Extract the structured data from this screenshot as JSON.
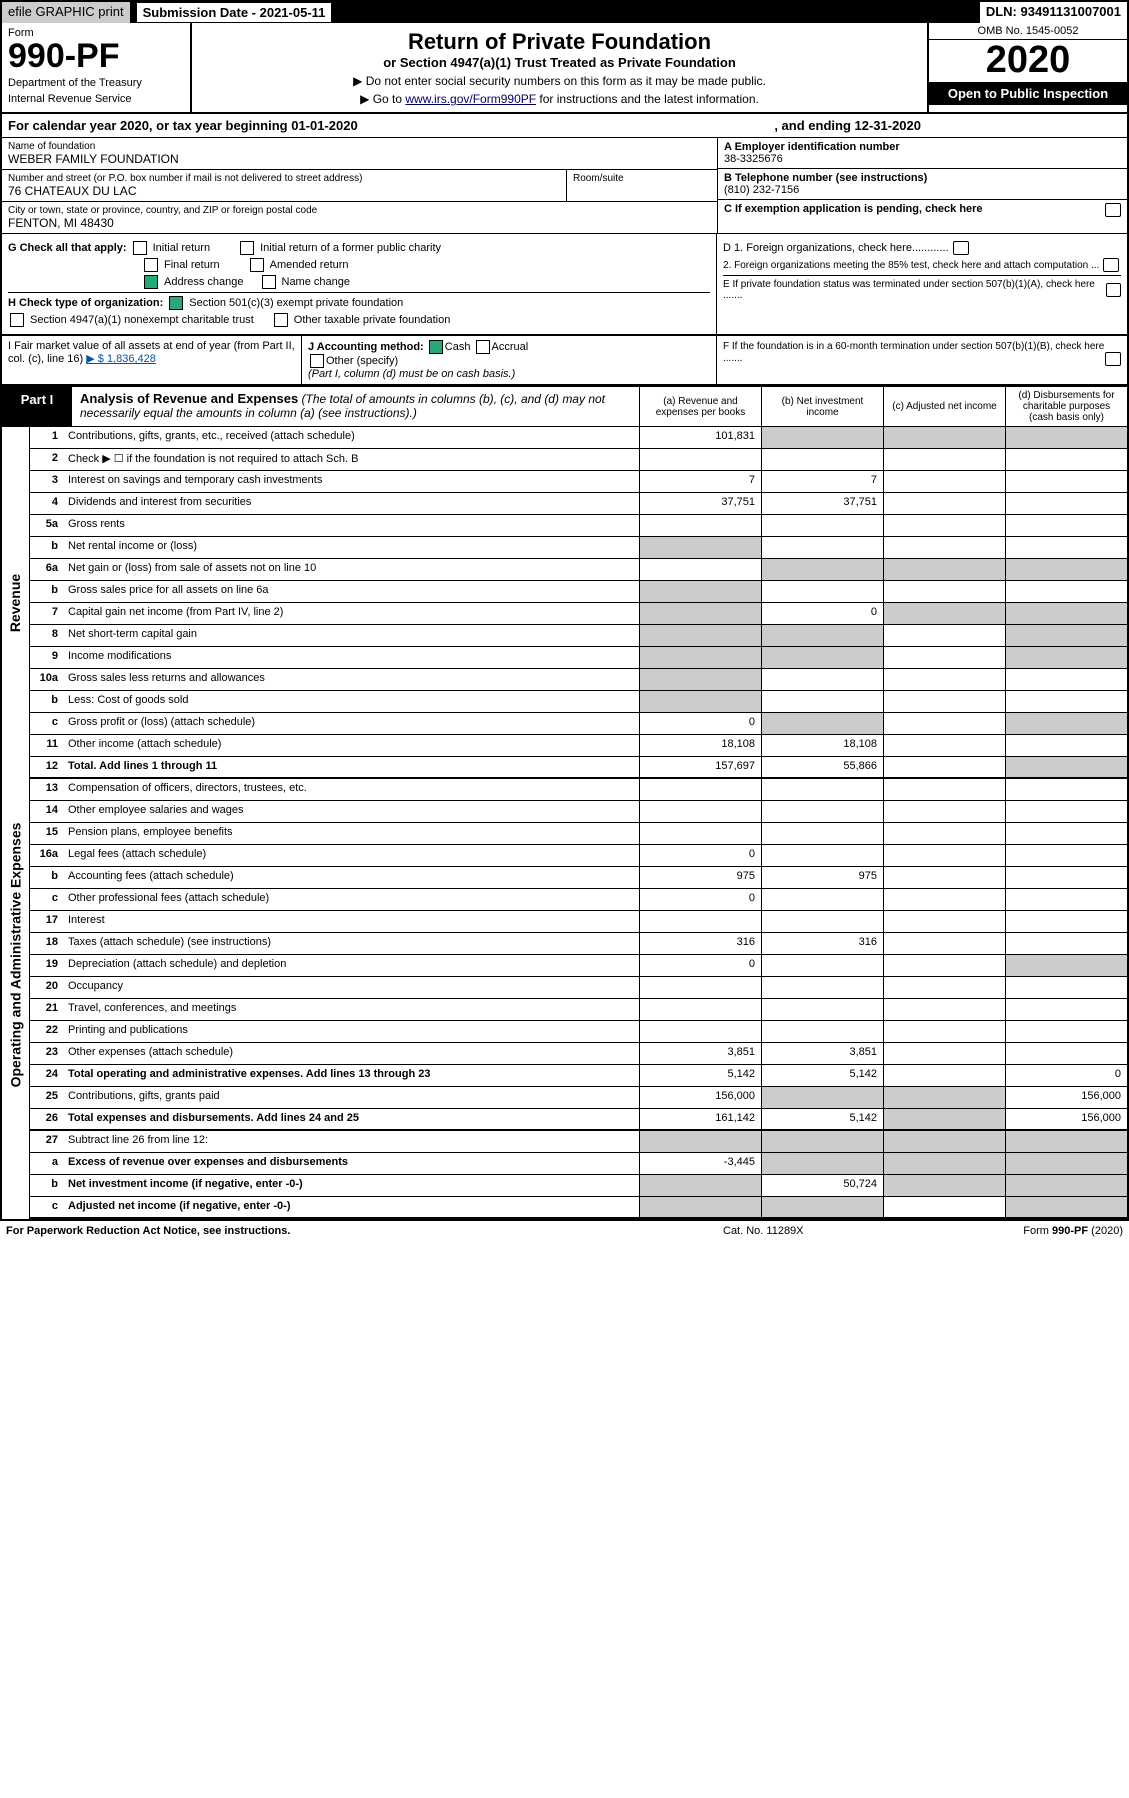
{
  "header": {
    "efile_lbl": "efile GRAPHIC print",
    "submission_date": "Submission Date - 2021-05-11",
    "dln": "DLN: 93491131007001",
    "form_word": "Form",
    "form_no": "990-PF",
    "dept1": "Department of the Treasury",
    "dept2": "Internal Revenue Service",
    "title": "Return of Private Foundation",
    "subtitle": "or Section 4947(a)(1) Trust Treated as Private Foundation",
    "instr1": "▶ Do not enter social security numbers on this form as it may be made public.",
    "instr2_pre": "▶ Go to ",
    "instr2_link": "www.irs.gov/Form990PF",
    "instr2_post": " for instructions and the latest information.",
    "omb": "OMB No. 1545-0052",
    "year": "2020",
    "open": "Open to Public Inspection"
  },
  "cal": {
    "l": "For calendar year 2020, or tax year beginning 01-01-2020",
    "r": ", and ending 12-31-2020"
  },
  "id": {
    "name_lbl": "Name of foundation",
    "name_val": "WEBER FAMILY FOUNDATION",
    "addr_lbl": "Number and street (or P.O. box number if mail is not delivered to street address)",
    "addr_val": "76 CHATEAUX DU LAC",
    "room_lbl": "Room/suite",
    "city_lbl": "City or town, state or province, country, and ZIP or foreign postal code",
    "city_val": "FENTON, MI  48430",
    "a_lbl": "A Employer identification number",
    "a_val": "38-3325676",
    "b_lbl": "B Telephone number (see instructions)",
    "b_val": "(810) 232-7156",
    "c_lbl": "C If exemption application is pending, check here",
    "d1": "D 1. Foreign organizations, check here............",
    "d2": "2. Foreign organizations meeting the 85% test, check here and attach computation ...",
    "e": "E  If private foundation status was terminated under section 507(b)(1)(A), check here .......",
    "f": "F  If the foundation is in a 60-month termination under section 507(b)(1)(B), check here .......",
    "g_lbl": "G Check all that apply:",
    "g_initial": "Initial return",
    "g_initial_fpc": "Initial return of a former public charity",
    "g_final": "Final return",
    "g_amended": "Amended return",
    "g_address": "Address change",
    "g_name": "Name change",
    "h_lbl": "H Check type of organization:",
    "h_501": "Section 501(c)(3) exempt private foundation",
    "h_4947": "Section 4947(a)(1) nonexempt charitable trust",
    "h_other_tax": "Other taxable private foundation",
    "i_lbl": "I Fair market value of all assets at end of year (from Part II, col. (c), line 16)",
    "i_val": "$  1,836,428",
    "j_lbl": "J Accounting method:",
    "j_cash": "Cash",
    "j_accrual": "Accrual",
    "j_other": "Other (specify)",
    "j_note": "(Part I, column (d) must be on cash basis.)"
  },
  "part1": {
    "tag": "Part I",
    "title": "Analysis of Revenue and Expenses",
    "title_note": " (The total of amounts in columns (b), (c), and (d) may not necessarily equal the amounts in column (a) (see instructions).)",
    "col_a": "(a) Revenue and expenses per books",
    "col_b": "(b) Net investment income",
    "col_c": "(c) Adjusted net income",
    "col_d": "(d) Disbursements for charitable purposes (cash basis only)",
    "side_rev": "Revenue",
    "side_exp": "Operating and Administrative Expenses"
  },
  "rows": [
    {
      "n": "1",
      "d": "Contributions, gifts, grants, etc., received (attach schedule)",
      "a": "101,831",
      "b": "",
      "sb": true,
      "sc": true,
      "sd": true
    },
    {
      "n": "2",
      "d": "Check ▶ ☐ if the foundation is not required to attach Sch. B",
      "nobord": true
    },
    {
      "n": "3",
      "d": "Interest on savings and temporary cash investments",
      "a": "7",
      "b": "7"
    },
    {
      "n": "4",
      "d": "Dividends and interest from securities",
      "a": "37,751",
      "b": "37,751"
    },
    {
      "n": "5a",
      "d": "Gross rents"
    },
    {
      "n": "b",
      "d": "Net rental income or (loss)",
      "sa": true
    },
    {
      "n": "6a",
      "d": "Net gain or (loss) from sale of assets not on line 10",
      "sb": true,
      "sc": true,
      "sd": true
    },
    {
      "n": "b",
      "d": "Gross sales price for all assets on line 6a",
      "sa": true
    },
    {
      "n": "7",
      "d": "Capital gain net income (from Part IV, line 2)",
      "sa": true,
      "b": "0",
      "sc": true,
      "sd": true
    },
    {
      "n": "8",
      "d": "Net short-term capital gain",
      "sa": true,
      "sb": true,
      "sd": true
    },
    {
      "n": "9",
      "d": "Income modifications",
      "sa": true,
      "sb": true,
      "sd": true
    },
    {
      "n": "10a",
      "d": "Gross sales less returns and allowances",
      "sa": true
    },
    {
      "n": "b",
      "d": "Less: Cost of goods sold",
      "sa": true
    },
    {
      "n": "c",
      "d": "Gross profit or (loss) (attach schedule)",
      "a": "0",
      "sb": true,
      "sd": true
    },
    {
      "n": "11",
      "d": "Other income (attach schedule)",
      "a": "18,108",
      "b": "18,108"
    },
    {
      "n": "12",
      "d": "Total. Add lines 1 through 11",
      "bold": true,
      "a": "157,697",
      "b": "55,866",
      "sd": true
    }
  ],
  "rows2": [
    {
      "n": "13",
      "d": "Compensation of officers, directors, trustees, etc."
    },
    {
      "n": "14",
      "d": "Other employee salaries and wages"
    },
    {
      "n": "15",
      "d": "Pension plans, employee benefits"
    },
    {
      "n": "16a",
      "d": "Legal fees (attach schedule)",
      "a": "0"
    },
    {
      "n": "b",
      "d": "Accounting fees (attach schedule)",
      "a": "975",
      "b": "975"
    },
    {
      "n": "c",
      "d": "Other professional fees (attach schedule)",
      "a": "0"
    },
    {
      "n": "17",
      "d": "Interest"
    },
    {
      "n": "18",
      "d": "Taxes (attach schedule) (see instructions)",
      "a": "316",
      "b": "316"
    },
    {
      "n": "19",
      "d": "Depreciation (attach schedule) and depletion",
      "a": "0",
      "sd": true
    },
    {
      "n": "20",
      "d": "Occupancy"
    },
    {
      "n": "21",
      "d": "Travel, conferences, and meetings"
    },
    {
      "n": "22",
      "d": "Printing and publications"
    },
    {
      "n": "23",
      "d": "Other expenses (attach schedule)",
      "a": "3,851",
      "b": "3,851"
    },
    {
      "n": "24",
      "d": "Total operating and administrative expenses. Add lines 13 through 23",
      "bold": true,
      "a": "5,142",
      "b": "5,142",
      "dd": "0"
    },
    {
      "n": "25",
      "d": "Contributions, gifts, grants paid",
      "a": "156,000",
      "sb": true,
      "sc": true,
      "dd": "156,000"
    },
    {
      "n": "26",
      "d": "Total expenses and disbursements. Add lines 24 and 25",
      "bold": true,
      "a": "161,142",
      "b": "5,142",
      "sc": true,
      "dd": "156,000"
    }
  ],
  "rows3": [
    {
      "n": "27",
      "d": "Subtract line 26 from line 12:",
      "sa": true,
      "sb": true,
      "sc": true,
      "sd": true
    },
    {
      "n": "a",
      "d": "Excess of revenue over expenses and disbursements",
      "bold": true,
      "a": "-3,445",
      "sb": true,
      "sc": true,
      "sd": true
    },
    {
      "n": "b",
      "d": "Net investment income (if negative, enter -0-)",
      "bold": true,
      "sa": true,
      "b": "50,724",
      "sc": true,
      "sd": true
    },
    {
      "n": "c",
      "d": "Adjusted net income (if negative, enter -0-)",
      "bold": true,
      "sa": true,
      "sb": true,
      "sd": true
    }
  ],
  "foot": {
    "l": "For Paperwork Reduction Act Notice, see instructions.",
    "m": "Cat. No. 11289X",
    "r": "Form 990-PF (2020)"
  },
  "colors": {
    "shade": "#cccccc",
    "chkon": "#22aa77"
  }
}
